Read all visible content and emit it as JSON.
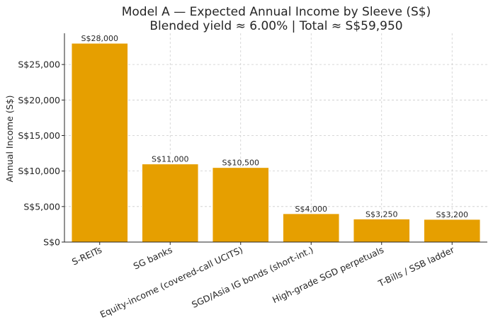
{
  "chart_data": {
    "type": "bar",
    "title": "Model A — Expected Annual Income by Sleeve (S$)",
    "subtitle": "Blended yield ≈ 6.00%  |  Total ≈ S$59,950",
    "xlabel": "",
    "ylabel": "Annual Income (S$)",
    "categories": [
      "S-REITs",
      "SG banks",
      "Equity-income (covered-call UCITS)",
      "SGD/Asia IG bonds (short-int.)",
      "High-grade SGD perpetuals",
      "T-Bills / SSB ladder"
    ],
    "values": [
      28000,
      11000,
      10500,
      4000,
      3250,
      3200
    ],
    "data_labels": [
      "S$28,000",
      "S$11,000",
      "S$10,500",
      "S$4,000",
      "S$3,250",
      "S$3,200"
    ],
    "ylim": [
      0,
      29400
    ],
    "yticks": [
      0,
      5000,
      10000,
      15000,
      20000,
      25000
    ],
    "ytick_labels": [
      "S$0",
      "S$5,000",
      "S$10,000",
      "S$15,000",
      "S$20,000",
      "S$25,000"
    ],
    "grid": true,
    "bar_color": "#E69F00",
    "bar_edge_color": "#ffffff",
    "grid_color": "#cccccc",
    "axis_color": "#262626"
  }
}
